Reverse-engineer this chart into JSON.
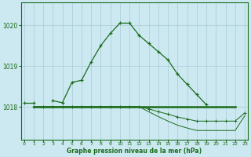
{
  "x": [
    0,
    1,
    2,
    3,
    4,
    5,
    6,
    7,
    8,
    9,
    10,
    11,
    12,
    13,
    14,
    15,
    16,
    17,
    18,
    19,
    20,
    21,
    22,
    23
  ],
  "line_main": [
    1018.1,
    1018.1,
    null,
    1018.15,
    1018.1,
    1018.6,
    1018.65,
    1019.1,
    1019.5,
    1019.8,
    1020.05,
    1020.05,
    1019.75,
    1019.55,
    1019.35,
    1019.15,
    1018.8,
    1018.55,
    1018.3,
    1018.05,
    null,
    null,
    null,
    null
  ],
  "line_flat": [
    null,
    1018.0,
    1018.0,
    1018.0,
    1018.0,
    1018.0,
    1018.0,
    1018.0,
    1018.0,
    1018.0,
    1018.0,
    1018.0,
    1018.0,
    1018.0,
    1018.0,
    1018.0,
    1018.0,
    1018.0,
    1018.0,
    1018.0,
    1018.0,
    1018.0,
    1018.0,
    null
  ],
  "line_decline1": [
    null,
    1018.0,
    1018.0,
    1018.0,
    1018.0,
    1018.0,
    1018.0,
    1018.0,
    1018.0,
    1018.0,
    1018.0,
    1018.0,
    1018.0,
    1017.95,
    1017.88,
    1017.82,
    1017.75,
    1017.7,
    1017.65,
    1017.65,
    1017.65,
    1017.65,
    1017.65,
    1017.85
  ],
  "line_decline2": [
    null,
    1018.0,
    1018.0,
    1018.0,
    1018.0,
    1018.0,
    1018.0,
    1018.0,
    1018.0,
    1018.0,
    1018.0,
    1018.0,
    1018.0,
    1017.88,
    1017.76,
    1017.65,
    1017.55,
    1017.48,
    1017.42,
    1017.42,
    1017.42,
    1017.42,
    1017.42,
    1017.78
  ],
  "bg_color": "#cce8f0",
  "grid_color": "#a8ccd8",
  "line_color": "#1a6b1a",
  "xlabel": "Graphe pression niveau de la mer (hPa)",
  "yticks": [
    1018,
    1019,
    1020
  ],
  "xticks": [
    0,
    1,
    2,
    3,
    4,
    5,
    6,
    7,
    8,
    9,
    10,
    11,
    12,
    13,
    14,
    15,
    16,
    17,
    18,
    19,
    20,
    21,
    22,
    23
  ],
  "ylim": [
    1017.2,
    1020.55
  ],
  "xlim": [
    -0.3,
    23.3
  ]
}
